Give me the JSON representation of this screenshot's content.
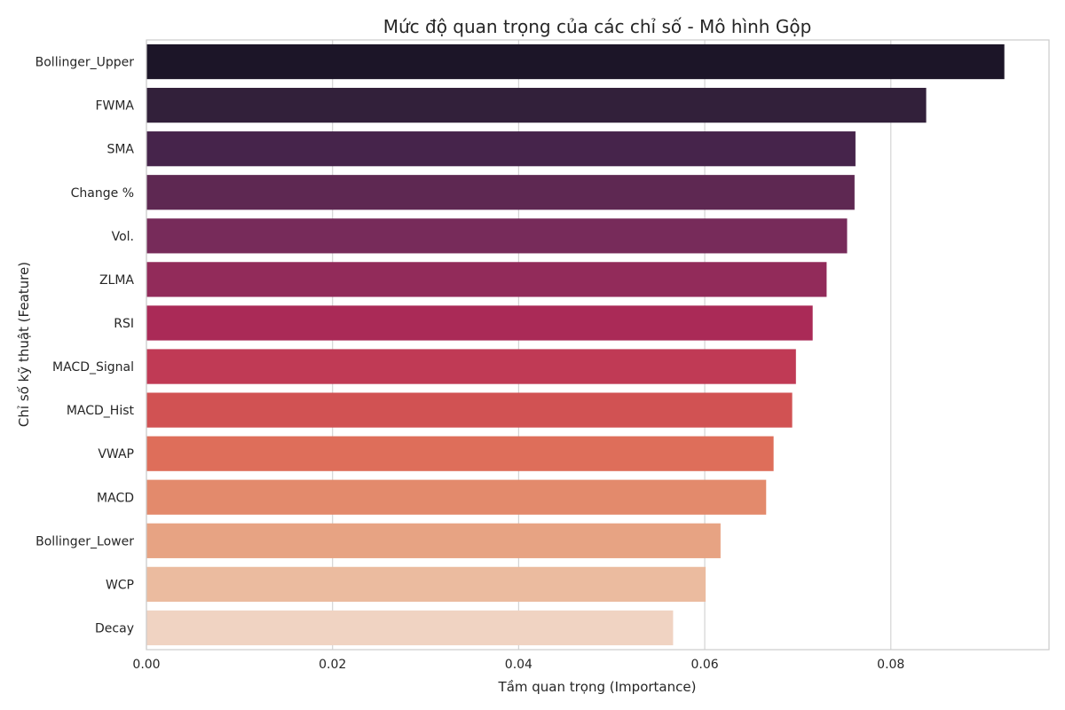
{
  "chart_data": {
    "type": "bar",
    "orientation": "horizontal",
    "title": "Mức độ quan trọng của các chỉ số - Mô hình Gộp",
    "xlabel": "Tầm quan trọng (Importance)",
    "ylabel": "Chỉ số kỹ thuật (Feature)",
    "xlim": [
      0,
      0.097
    ],
    "xticks": [
      0.0,
      0.02,
      0.04,
      0.06,
      0.08
    ],
    "xtick_labels": [
      "0.00",
      "0.02",
      "0.04",
      "0.06",
      "0.08"
    ],
    "grid": true,
    "categories": [
      "Bollinger_Upper",
      "FWMA",
      "SMA",
      "Change %",
      "Vol.",
      "ZLMA",
      "RSI",
      "MACD_Signal",
      "MACD_Hist",
      "VWAP",
      "MACD",
      "Bollinger_Lower",
      "WCP",
      "Decay"
    ],
    "values": [
      0.0922,
      0.0838,
      0.0762,
      0.0761,
      0.0753,
      0.0731,
      0.0716,
      0.0698,
      0.0694,
      0.0674,
      0.0666,
      0.0617,
      0.0601,
      0.0566
    ],
    "colors": [
      "#1c1528",
      "#32203a",
      "#46244b",
      "#5e2852",
      "#772b5a",
      "#922b5a",
      "#aa2a57",
      "#c03a55",
      "#d15253",
      "#de6e5a",
      "#e38a6c",
      "#e7a383",
      "#ebbb9f",
      "#f0d3c2"
    ]
  }
}
